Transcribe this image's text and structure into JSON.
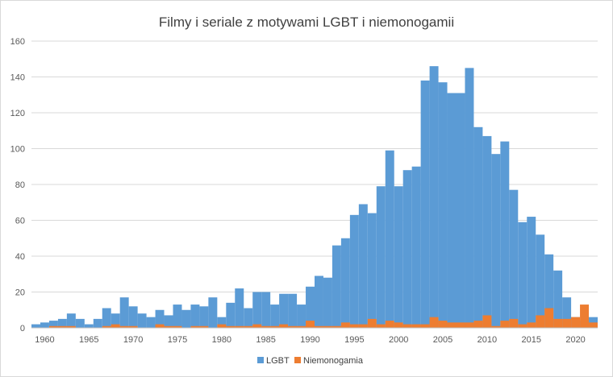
{
  "chart_data": {
    "type": "bar",
    "title": "Filmy i seriale z motywami LGBT i niemonogamii",
    "xlabel": "",
    "ylabel": "",
    "ylim": [
      0,
      160
    ],
    "yticks": [
      0,
      20,
      40,
      60,
      80,
      100,
      120,
      140,
      160
    ],
    "xticks": [
      1960,
      1965,
      1970,
      1975,
      1980,
      1985,
      1990,
      1995,
      2000,
      2005,
      2010,
      2015,
      2020
    ],
    "grid": true,
    "legend_position": "bottom",
    "bar_mode": "overlap",
    "categories": [
      1959,
      1960,
      1961,
      1962,
      1963,
      1964,
      1965,
      1966,
      1967,
      1968,
      1969,
      1970,
      1971,
      1972,
      1973,
      1974,
      1975,
      1976,
      1977,
      1978,
      1979,
      1980,
      1981,
      1982,
      1983,
      1984,
      1985,
      1986,
      1987,
      1988,
      1989,
      1990,
      1991,
      1992,
      1993,
      1994,
      1995,
      1996,
      1997,
      1998,
      1999,
      2000,
      2001,
      2002,
      2003,
      2004,
      2005,
      2006,
      2007,
      2008,
      2009,
      2010,
      2011,
      2012,
      2013,
      2014,
      2015,
      2016,
      2017,
      2018,
      2019,
      2020,
      2021,
      2022
    ],
    "series": [
      {
        "name": "LGBT",
        "color": "#5b9bd5",
        "values": [
          2,
          3,
          4,
          5,
          8,
          5,
          2,
          5,
          11,
          8,
          17,
          12,
          8,
          6,
          10,
          7,
          13,
          10,
          13,
          12,
          17,
          6,
          14,
          22,
          11,
          20,
          20,
          13,
          19,
          19,
          13,
          23,
          29,
          28,
          46,
          50,
          63,
          69,
          64,
          79,
          99,
          79,
          88,
          90,
          138,
          146,
          137,
          131,
          131,
          145,
          112,
          107,
          97,
          104,
          77,
          59,
          62,
          52,
          41,
          32,
          17,
          6,
          4,
          6
        ]
      },
      {
        "name": "Niemonogamia",
        "color": "#ed7d31",
        "values": [
          0,
          0,
          1,
          1,
          1,
          0,
          0,
          0,
          1,
          2,
          1,
          1,
          0,
          0,
          2,
          1,
          1,
          0,
          1,
          1,
          0,
          2,
          1,
          1,
          1,
          2,
          1,
          1,
          2,
          1,
          1,
          4,
          1,
          1,
          1,
          3,
          2,
          2,
          5,
          2,
          4,
          3,
          2,
          2,
          2,
          6,
          4,
          3,
          3,
          3,
          4,
          7,
          1,
          4,
          5,
          2,
          3,
          7,
          11,
          5,
          5,
          6,
          13,
          3
        ]
      }
    ]
  }
}
